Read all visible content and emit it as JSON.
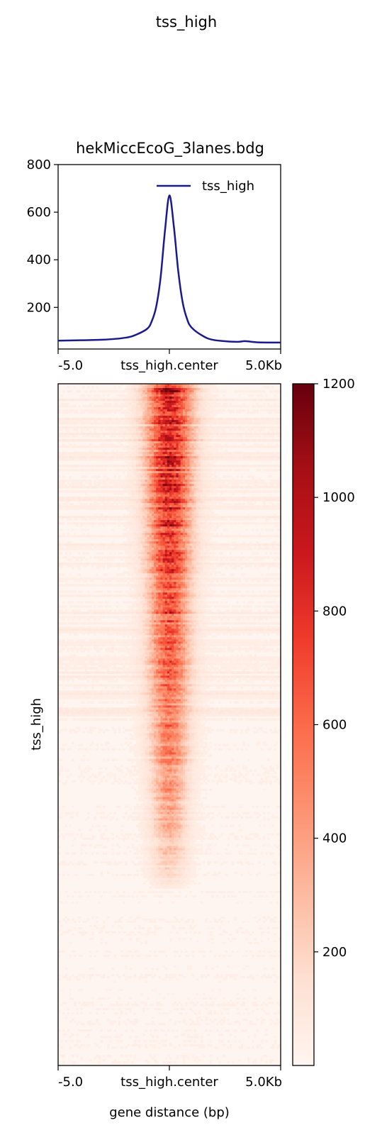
{
  "figure_title": "tss_high",
  "profile": {
    "title": "hekMiccEcoG_3lanes.bdg",
    "y_ticks": [
      "200",
      "400",
      "600",
      "800"
    ],
    "x_ticks": [
      "-5.0",
      "tss_high.center",
      "5.0Kb"
    ],
    "legend": [
      "tss_high"
    ]
  },
  "heatmap": {
    "ylabel": "tss_high",
    "xlabel": "gene distance (bp)",
    "x_ticks": [
      "-5.0",
      "tss_high.center",
      "5.0Kb"
    ],
    "colormap": "Reds"
  },
  "colorbar": {
    "ticks": [
      "200",
      "400",
      "600",
      "800",
      "1000",
      "1200"
    ]
  },
  "colors": {
    "line": "#1a1a8c",
    "reds_low": "#fff5f0",
    "reds_high": "#67000d"
  },
  "chart_data": [
    {
      "type": "line",
      "title": "hekMiccEcoG_3lanes.bdg",
      "x": [
        -5.0,
        -4.0,
        -3.0,
        -2.0,
        -1.5,
        -1.0,
        -0.8,
        -0.6,
        -0.4,
        -0.2,
        0.0,
        0.2,
        0.4,
        0.6,
        0.8,
        1.0,
        1.5,
        2.0,
        3.0,
        3.4,
        4.0,
        5.0
      ],
      "xlim": [
        -5.0,
        5.0
      ],
      "ylim": [
        25,
        800
      ],
      "series": [
        {
          "name": "tss_high",
          "values": [
            60,
            62,
            64,
            72,
            85,
            110,
            140,
            200,
            320,
            520,
            670,
            540,
            350,
            220,
            150,
            115,
            80,
            63,
            55,
            58,
            53,
            52
          ]
        }
      ],
      "legend_position": "top-right",
      "grid": false
    },
    {
      "type": "heatmap",
      "ylabel": "tss_high",
      "xlabel": "gene distance (bp)",
      "xlim": [
        -5.0,
        5.0
      ],
      "colorbar_range": [
        0,
        1200
      ],
      "colormap": "Reds",
      "signal_center": 0.0,
      "peak_value": 1150,
      "background_value": 30
    }
  ]
}
